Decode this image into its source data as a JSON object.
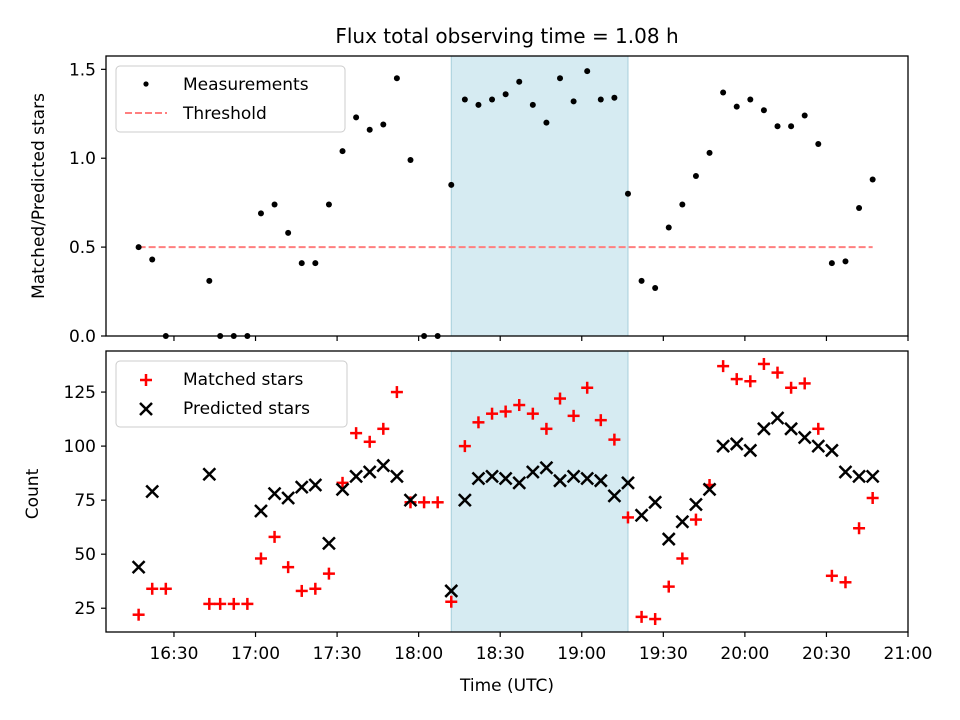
{
  "chart_data": [
    {
      "type": "scatter",
      "title": "Flux total observing time = 1.08 h",
      "xlabel": "",
      "ylabel": "Matched/Predicted stars",
      "xlim_minutes": [
        965,
        1260
      ],
      "ylim": [
        0.0,
        1.575
      ],
      "yticks": [
        0.0,
        0.5,
        1.0,
        1.5
      ],
      "ytick_labels": [
        "0.0",
        "0.5",
        "1.0",
        "1.5"
      ],
      "legend": {
        "placement": "top-left",
        "entries": [
          "Measurements",
          "Threshold"
        ]
      },
      "shaded_span": {
        "x_start": "18:12",
        "x_end": "19:17",
        "color": "#add8e6"
      },
      "threshold": {
        "value": 0.5,
        "x_start": "16:17",
        "x_end": "20:47",
        "color": "#ff7f7f"
      },
      "series": [
        {
          "name": "Measurements",
          "marker": "dot",
          "color": "#000000",
          "x": [
            "16:17",
            "16:22",
            "16:27",
            "16:43",
            "16:47",
            "16:52",
            "16:57",
            "17:02",
            "17:07",
            "17:12",
            "17:17",
            "17:22",
            "17:27",
            "17:32",
            "17:37",
            "17:42",
            "17:47",
            "17:52",
            "17:57",
            "18:02",
            "18:07",
            "18:12",
            "18:17",
            "18:22",
            "18:27",
            "18:32",
            "18:37",
            "18:42",
            "18:47",
            "18:52",
            "18:57",
            "19:02",
            "19:07",
            "19:12",
            "19:17",
            "19:22",
            "19:27",
            "19:32",
            "19:37",
            "19:42",
            "19:47",
            "19:52",
            "19:57",
            "20:02",
            "20:07",
            "20:12",
            "20:17",
            "20:22",
            "20:27",
            "20:32",
            "20:37",
            "20:42",
            "20:47"
          ],
          "y": [
            0.5,
            0.43,
            0.0,
            0.31,
            0.0,
            0.0,
            0.0,
            0.69,
            0.74,
            0.58,
            0.41,
            0.41,
            0.74,
            1.04,
            1.23,
            1.16,
            1.19,
            1.45,
            0.99,
            0.0,
            0.0,
            0.85,
            1.33,
            1.3,
            1.33,
            1.36,
            1.43,
            1.3,
            1.2,
            1.45,
            1.32,
            1.49,
            1.33,
            1.34,
            0.8,
            0.31,
            0.27,
            0.61,
            0.74,
            0.9,
            1.03,
            1.37,
            1.29,
            1.33,
            1.27,
            1.18,
            1.18,
            1.24,
            1.08,
            0.41,
            0.42,
            0.72,
            0.88
          ]
        }
      ]
    },
    {
      "type": "scatter",
      "title": "",
      "xlabel": "Time (UTC)",
      "ylabel": "Count",
      "xticks": [
        "16:30",
        "17:00",
        "17:30",
        "18:00",
        "18:30",
        "19:00",
        "19:30",
        "20:00",
        "20:30",
        "21:00"
      ],
      "xlim_minutes": [
        965,
        1260
      ],
      "ylim": [
        14,
        144
      ],
      "yticks": [
        25,
        50,
        75,
        100,
        125
      ],
      "ytick_labels": [
        "25",
        "50",
        "75",
        "100",
        "125"
      ],
      "legend": {
        "placement": "top-left",
        "entries": [
          "Matched stars",
          "Predicted stars"
        ]
      },
      "shaded_span": {
        "x_start": "18:12",
        "x_end": "19:17",
        "color": "#add8e6"
      },
      "series": [
        {
          "name": "Matched stars",
          "marker": "+",
          "color": "#ff0000",
          "x": [
            "16:17",
            "16:22",
            "16:27",
            "16:43",
            "16:47",
            "16:52",
            "16:57",
            "17:02",
            "17:07",
            "17:12",
            "17:17",
            "17:22",
            "17:27",
            "17:32",
            "17:37",
            "17:42",
            "17:47",
            "17:52",
            "17:57",
            "18:02",
            "18:07",
            "18:12",
            "18:17",
            "18:22",
            "18:27",
            "18:32",
            "18:37",
            "18:42",
            "18:47",
            "18:52",
            "18:57",
            "19:02",
            "19:07",
            "19:12",
            "19:17",
            "19:22",
            "19:27",
            "19:32",
            "19:37",
            "19:42",
            "19:47",
            "19:52",
            "19:57",
            "20:02",
            "20:07",
            "20:12",
            "20:17",
            "20:22",
            "20:27",
            "20:32",
            "20:37",
            "20:42",
            "20:47"
          ],
          "y": [
            22,
            34,
            34,
            27,
            27,
            27,
            27,
            48,
            58,
            44,
            33,
            34,
            41,
            83,
            106,
            102,
            108,
            125,
            74,
            74,
            74,
            28,
            100,
            111,
            115,
            116,
            119,
            115,
            108,
            122,
            114,
            127,
            112,
            103,
            67,
            21,
            20,
            35,
            48,
            66,
            82,
            137,
            131,
            130,
            138,
            134,
            127,
            129,
            108,
            40,
            37,
            62,
            76
          ]
        },
        {
          "name": "Predicted stars",
          "marker": "x",
          "color": "#000000",
          "x": [
            "16:17",
            "16:22",
            "16:43",
            "17:02",
            "17:07",
            "17:12",
            "17:17",
            "17:22",
            "17:27",
            "17:32",
            "17:37",
            "17:42",
            "17:47",
            "17:52",
            "17:57",
            "18:12",
            "18:17",
            "18:22",
            "18:27",
            "18:32",
            "18:37",
            "18:42",
            "18:47",
            "18:52",
            "18:57",
            "19:02",
            "19:07",
            "19:12",
            "19:17",
            "19:22",
            "19:27",
            "19:32",
            "19:37",
            "19:42",
            "19:47",
            "19:52",
            "19:57",
            "20:02",
            "20:07",
            "20:12",
            "20:17",
            "20:22",
            "20:27",
            "20:32",
            "20:37",
            "20:42",
            "20:47"
          ],
          "y": [
            44,
            79,
            87,
            70,
            78,
            76,
            81,
            82,
            55,
            80,
            86,
            88,
            91,
            86,
            75,
            33,
            75,
            85,
            86,
            85,
            83,
            88,
            90,
            84,
            86,
            85,
            84,
            77,
            83,
            68,
            74,
            57,
            65,
            73,
            80,
            100,
            101,
            98,
            108,
            113,
            108,
            104,
            100,
            98,
            88,
            86,
            86
          ]
        }
      ]
    }
  ],
  "figure": {
    "title": "Flux total observing time = 1.08 h"
  },
  "legend_top": {
    "measurements": "Measurements",
    "threshold": "Threshold"
  },
  "legend_bottom": {
    "matched": "Matched stars",
    "predicted": "Predicted stars"
  }
}
